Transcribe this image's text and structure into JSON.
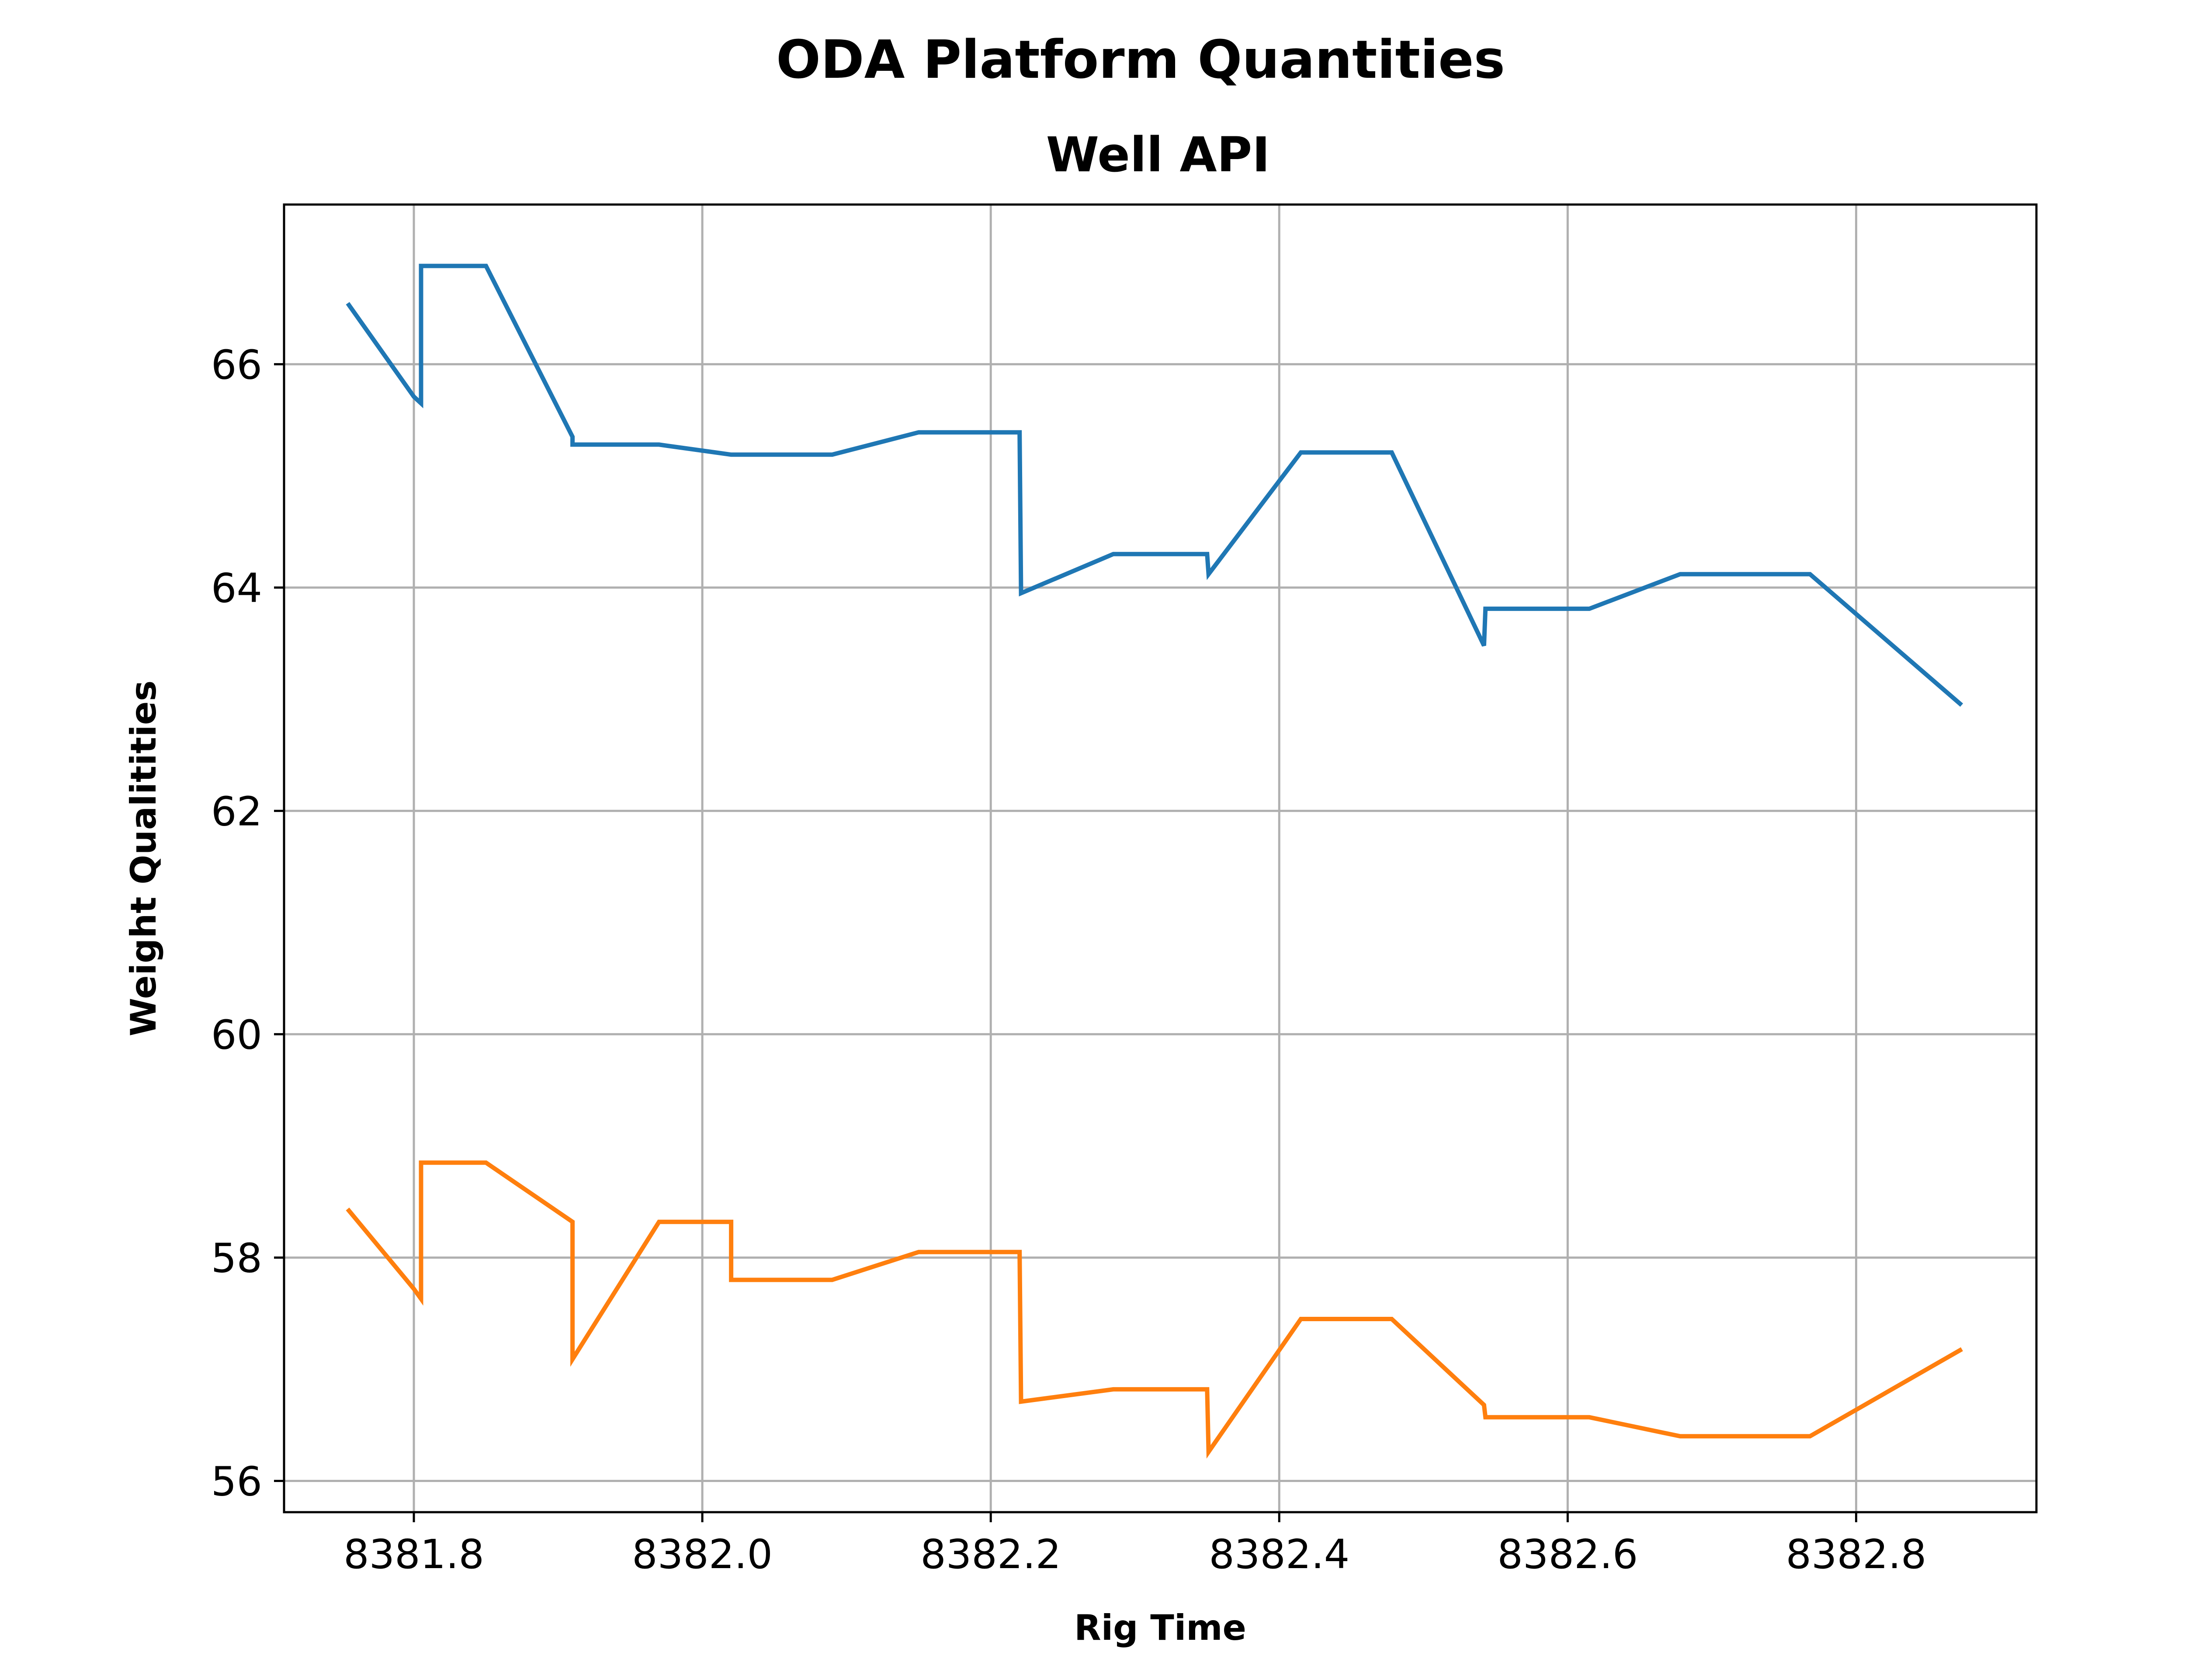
{
  "chart_data": {
    "type": "line",
    "title": "ODA Platform Quantities",
    "subtitle": "Well API",
    "xlabel": "Rig Time",
    "ylabel": "Weight Qualitities",
    "xlim": [
      8381.71,
      8382.925
    ],
    "ylim": [
      55.72,
      67.43
    ],
    "xticks": [
      8381.8,
      8382.0,
      8382.2,
      8382.4,
      8382.6,
      8382.8
    ],
    "xtick_labels": [
      "8381.8",
      "8382.0",
      "8382.2",
      "8382.4",
      "8382.6",
      "8382.8"
    ],
    "yticks": [
      56,
      58,
      60,
      62,
      64,
      66
    ],
    "ytick_labels": [
      "56",
      "58",
      "60",
      "62",
      "64",
      "66"
    ],
    "grid": true,
    "series": [
      {
        "color": "#1f77b4",
        "x": [
          8381.755,
          8381.8,
          8381.805,
          8381.805,
          8381.85,
          8381.91,
          8381.91,
          8381.97,
          8382.02,
          8382.09,
          8382.15,
          8382.22,
          8382.221,
          8382.285,
          8382.35,
          8382.351,
          8382.415,
          8382.478,
          8382.542,
          8382.543,
          8382.615,
          8382.678,
          8382.768,
          8382.872
        ],
        "y": [
          66.53,
          65.71,
          65.65,
          66.88,
          66.88,
          65.35,
          65.28,
          65.28,
          65.19,
          65.19,
          65.39,
          65.39,
          63.95,
          64.3,
          64.3,
          64.12,
          65.21,
          65.21,
          63.48,
          63.81,
          63.81,
          64.12,
          64.12,
          62.96
        ]
      },
      {
        "color": "#ff7f0e",
        "x": [
          8381.755,
          8381.8,
          8381.805,
          8381.805,
          8381.85,
          8381.91,
          8381.91,
          8381.97,
          8382.02,
          8382.02,
          8382.09,
          8382.15,
          8382.22,
          8382.221,
          8382.285,
          8382.35,
          8382.351,
          8382.415,
          8382.478,
          8382.542,
          8382.543,
          8382.615,
          8382.678,
          8382.768,
          8382.872
        ],
        "y": [
          58.42,
          57.72,
          57.63,
          58.85,
          58.85,
          58.32,
          57.09,
          58.32,
          58.32,
          57.8,
          57.8,
          58.05,
          58.05,
          56.71,
          56.82,
          56.82,
          56.26,
          57.45,
          57.45,
          56.68,
          56.57,
          56.57,
          56.4,
          56.4,
          57.17
        ]
      }
    ]
  }
}
